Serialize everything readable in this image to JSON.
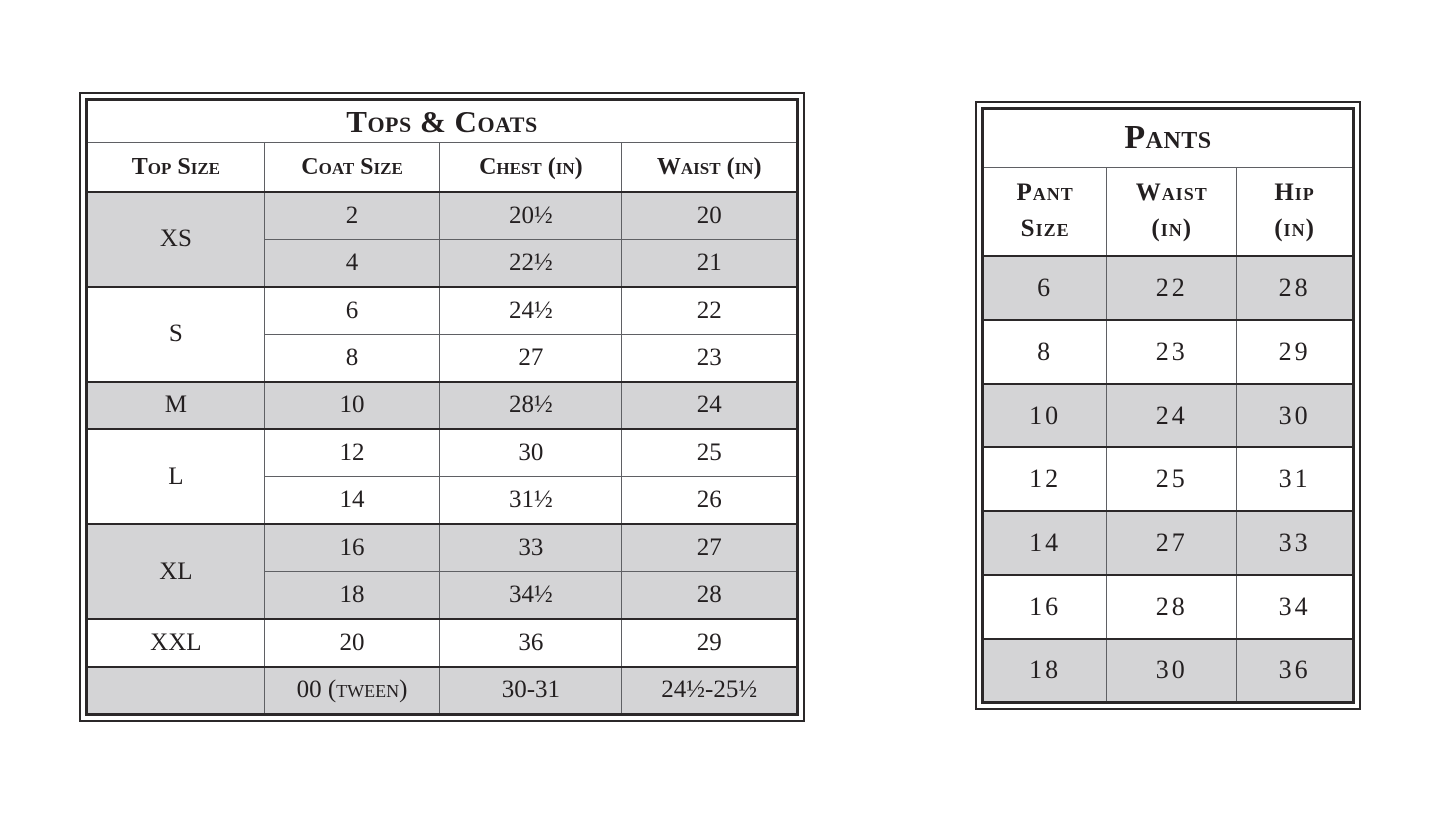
{
  "colors": {
    "shaded_row": "#d4d4d6",
    "text": "#231f20",
    "border": "#2b2829"
  },
  "tops_coats_table": {
    "title": "Tops & Coats",
    "columns": [
      "Top Size",
      "Coat Size",
      "Chest (in)",
      "Waist (in)"
    ],
    "groups": [
      {
        "top_size": "XS",
        "shaded": true,
        "rows": [
          [
            "2",
            "20½",
            "20"
          ],
          [
            "4",
            "22½",
            "21"
          ]
        ]
      },
      {
        "top_size": "S",
        "shaded": false,
        "rows": [
          [
            "6",
            "24½",
            "22"
          ],
          [
            "8",
            "27",
            "23"
          ]
        ]
      },
      {
        "top_size": "M",
        "shaded": true,
        "rows": [
          [
            "10",
            "28½",
            "24"
          ]
        ]
      },
      {
        "top_size": "L",
        "shaded": false,
        "rows": [
          [
            "12",
            "30",
            "25"
          ],
          [
            "14",
            "31½",
            "26"
          ]
        ]
      },
      {
        "top_size": "XL",
        "shaded": true,
        "rows": [
          [
            "16",
            "33",
            "27"
          ],
          [
            "18",
            "34½",
            "28"
          ]
        ]
      },
      {
        "top_size": "XXL",
        "shaded": false,
        "rows": [
          [
            "20",
            "36",
            "29"
          ]
        ]
      },
      {
        "top_size": "",
        "shaded": true,
        "rows": [
          [
            "00 (tween)",
            "30-31",
            "24½-25½"
          ]
        ]
      }
    ]
  },
  "pants_table": {
    "title": "Pants",
    "columns": [
      {
        "line1": "Pant",
        "line2": "Size"
      },
      {
        "line1": "Waist",
        "line2": "(in)"
      },
      {
        "line1": "Hip",
        "line2": "(in)"
      }
    ],
    "rows": [
      {
        "shaded": true,
        "cells": [
          "6",
          "22",
          "28"
        ]
      },
      {
        "shaded": false,
        "cells": [
          "8",
          "23",
          "29"
        ]
      },
      {
        "shaded": true,
        "cells": [
          "10",
          "24",
          "30"
        ]
      },
      {
        "shaded": false,
        "cells": [
          "12",
          "25",
          "31"
        ]
      },
      {
        "shaded": true,
        "cells": [
          "14",
          "27",
          "33"
        ]
      },
      {
        "shaded": false,
        "cells": [
          "16",
          "28",
          "34"
        ]
      },
      {
        "shaded": true,
        "cells": [
          "18",
          "30",
          "36"
        ]
      }
    ]
  }
}
